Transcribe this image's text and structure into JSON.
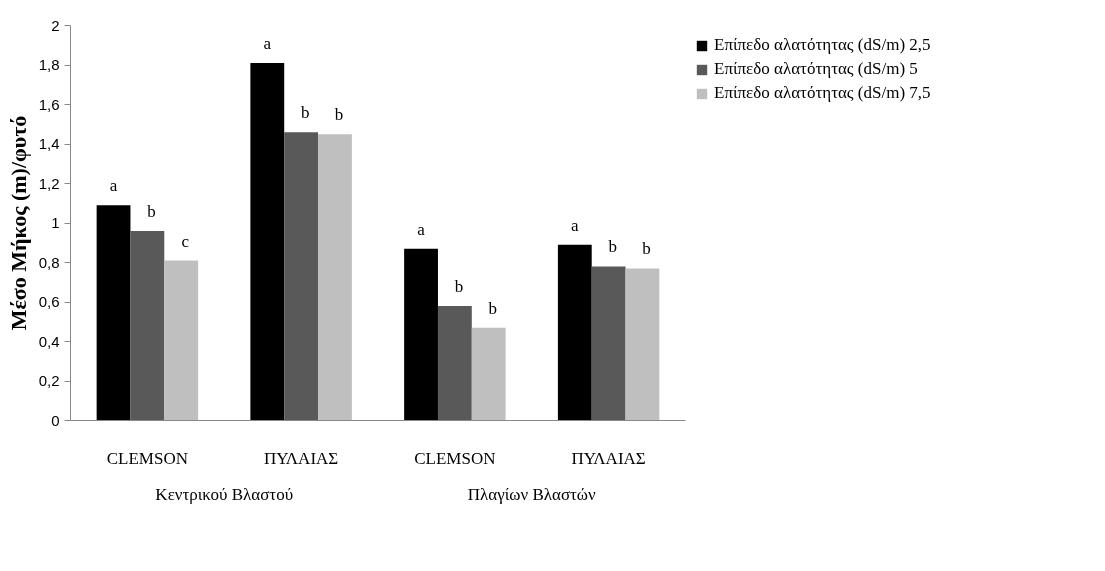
{
  "chart_data": {
    "type": "bar",
    "ylabel": "Μέσο Μήκος (m)/φυτό",
    "categories": [
      "CLEMSON",
      "ΠΥΛΑΙΑΣ",
      "CLEMSON",
      "ΠΥΛΑΙΑΣ"
    ],
    "annotations": [
      "Κεντρικού Βλαστού",
      "Πλαγίων Βλαστών"
    ],
    "series": [
      {
        "name": "Επίπεδο αλατότητας (dS/m) 2,5",
        "color": "#000000",
        "values": [
          1.09,
          1.81,
          0.87,
          0.89
        ],
        "value_labels": [
          "a",
          "a",
          "a",
          "a"
        ]
      },
      {
        "name": "Επίπεδο αλατότητας (dS/m) 5",
        "color": "#595959",
        "values": [
          0.96,
          1.46,
          0.58,
          0.78
        ],
        "value_labels": [
          "b",
          "b",
          "b",
          "b"
        ]
      },
      {
        "name": "Επίπεδο αλατότητας (dS/m) 7,5",
        "color": "#bfbfbf",
        "values": [
          0.81,
          1.45,
          0.47,
          0.77
        ],
        "value_labels": [
          "c",
          "b",
          "b",
          "b"
        ]
      }
    ],
    "ylim": [
      0,
      2
    ],
    "yticks": [
      {
        "value": 0,
        "label": "0"
      },
      {
        "value": 0.2,
        "label": "0,2"
      },
      {
        "value": 0.4,
        "label": "0,4"
      },
      {
        "value": 0.6,
        "label": "0,6"
      },
      {
        "value": 0.8,
        "label": "0,8"
      },
      {
        "value": 1,
        "label": "1"
      },
      {
        "value": 1.2,
        "label": "1,2"
      },
      {
        "value": 1.4,
        "label": "1,4"
      },
      {
        "value": 1.6,
        "label": "1,6"
      },
      {
        "value": 1.8,
        "label": "1,8"
      },
      {
        "value": 2,
        "label": "2"
      }
    ],
    "grid": false,
    "legend": "top right"
  }
}
